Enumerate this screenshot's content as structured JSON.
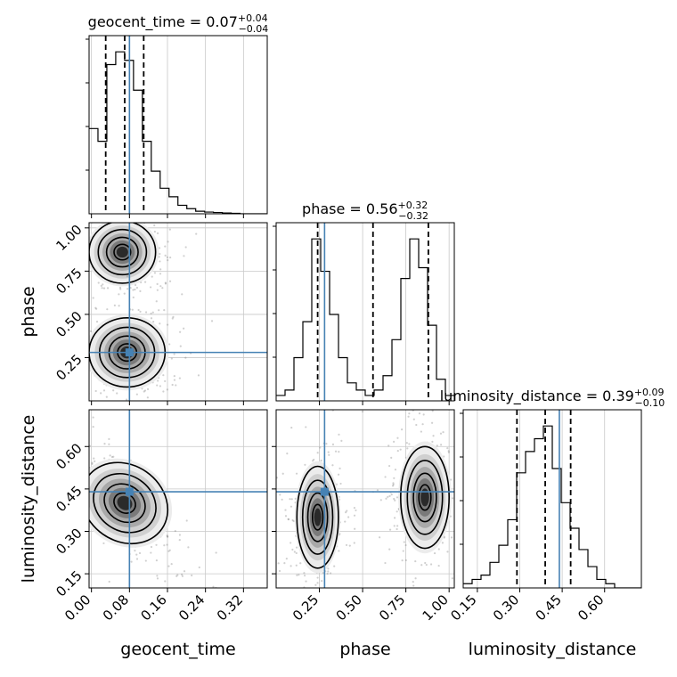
{
  "chart_data": {
    "type": "corner",
    "parameters": [
      "geocent_time",
      "phase",
      "luminosity_distance"
    ],
    "truths": [
      0.08,
      0.28,
      0.44
    ],
    "truth_color": "#4682b4",
    "titles": [
      {
        "label": "geocent_time = 0.07",
        "plus": "+0.04",
        "minus": "−0.04"
      },
      {
        "label": "phase = 0.56",
        "plus": "+0.32",
        "minus": "−0.32"
      },
      {
        "label": "luminosity_distance = 0.39",
        "plus": "+0.09",
        "minus": "−0.10"
      }
    ],
    "ranges": [
      [
        -0.005,
        0.37
      ],
      [
        0.0,
        1.03
      ],
      [
        0.1,
        0.73
      ]
    ],
    "ticks": [
      {
        "values": [
          0.0,
          0.08,
          0.16,
          0.24,
          0.32
        ],
        "labels": [
          "0.00",
          "0.08",
          "0.16",
          "0.24",
          "0.32"
        ]
      },
      {
        "values": [
          0.25,
          0.5,
          0.75,
          1.0
        ],
        "labels": [
          "0.25",
          "0.50",
          "0.75",
          "1.00"
        ]
      },
      {
        "values": [
          0.15,
          0.3,
          0.45,
          0.6
        ],
        "labels": [
          "0.15",
          "0.30",
          "0.45",
          "0.60"
        ]
      }
    ],
    "quantiles": [
      [
        0.03,
        0.07,
        0.11
      ],
      [
        0.24,
        0.56,
        0.88
      ],
      [
        0.29,
        0.39,
        0.48
      ]
    ],
    "histograms": [
      {
        "bins_start": -0.005,
        "bin_width": 0.0187,
        "counts": [
          20,
          17,
          35,
          38,
          36,
          29,
          17,
          10,
          6,
          4,
          2,
          1.2,
          0.6,
          0.4,
          0.3,
          0.2,
          0.1,
          0,
          0,
          0
        ]
      },
      {
        "bins_start": 0.0,
        "bin_width": 0.0515,
        "counts": [
          1.5,
          3,
          12,
          22,
          45,
          36,
          24,
          12,
          5,
          3,
          1.5,
          3,
          7,
          17,
          34,
          45,
          37,
          21,
          6,
          1.5
        ]
      },
      {
        "bins_start": 0.1,
        "bin_width": 0.0315,
        "counts": [
          1,
          2,
          3,
          6,
          10,
          16,
          27,
          32,
          35,
          38,
          28,
          20,
          14,
          9,
          5,
          2,
          1,
          0,
          0,
          0
        ]
      }
    ],
    "blobs": {
      "phase_vs_geocent_time": [
        {
          "x": 0.065,
          "y": 0.86,
          "sx": 0.035,
          "sy": 0.09
        },
        {
          "x": 0.075,
          "y": 0.28,
          "sx": 0.04,
          "sy": 0.1
        }
      ],
      "luminosity_distance_vs_geocent_time": [
        {
          "x": 0.07,
          "y": 0.4,
          "sx": 0.04,
          "sy": 0.08,
          "rho": -0.75
        }
      ],
      "luminosity_distance_vs_phase": [
        {
          "x": 0.24,
          "y": 0.35,
          "sx": 0.06,
          "sy": 0.09
        },
        {
          "x": 0.86,
          "y": 0.42,
          "sx": 0.07,
          "sy": 0.09
        }
      ]
    }
  }
}
